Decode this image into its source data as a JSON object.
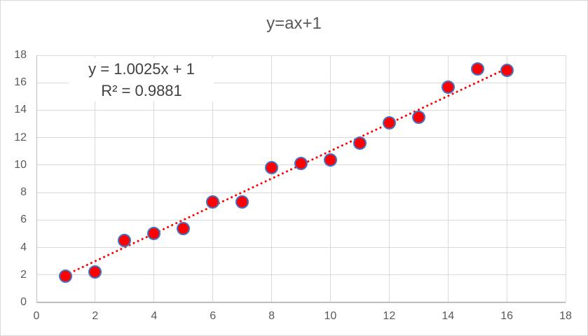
{
  "chart": {
    "title": "y=ax+1"
  },
  "chart_data": {
    "type": "scatter",
    "title": "y=ax+1",
    "xlabel": "",
    "ylabel": "",
    "x": [
      1,
      2,
      3,
      4,
      5,
      6,
      7,
      8,
      9,
      10,
      11,
      12,
      13,
      14,
      15,
      16
    ],
    "y": [
      1.9,
      2.2,
      4.5,
      5.0,
      5.4,
      7.3,
      7.3,
      9.8,
      10.1,
      10.4,
      11.6,
      13.1,
      13.5,
      15.7,
      17.0,
      16.9
    ],
    "xlim": [
      0,
      18
    ],
    "ylim": [
      0,
      18
    ],
    "xticks": [
      0,
      2,
      4,
      6,
      8,
      10,
      12,
      14,
      16,
      18
    ],
    "yticks": [
      0,
      2,
      4,
      6,
      8,
      10,
      12,
      14,
      16,
      18
    ],
    "grid": true,
    "legend": false,
    "trendline": {
      "type": "linear",
      "slope": 1.0025,
      "intercept": 1,
      "x_start": 1,
      "x_end": 16,
      "equation_label": "y = 1.0025x + 1",
      "r2_label": "R² = 0.9881",
      "r_squared": 0.9881,
      "style": "dotted"
    }
  },
  "colors": {
    "marker_fill": "#ff0000",
    "marker_border": "#4472c4",
    "trendline": "#ff0000",
    "gridline": "#d9d9d9",
    "axis_line": "#bfbfbf",
    "tick_text": "#595959",
    "equation_text": "#404040",
    "chart_border": "#d9d9d9"
  }
}
